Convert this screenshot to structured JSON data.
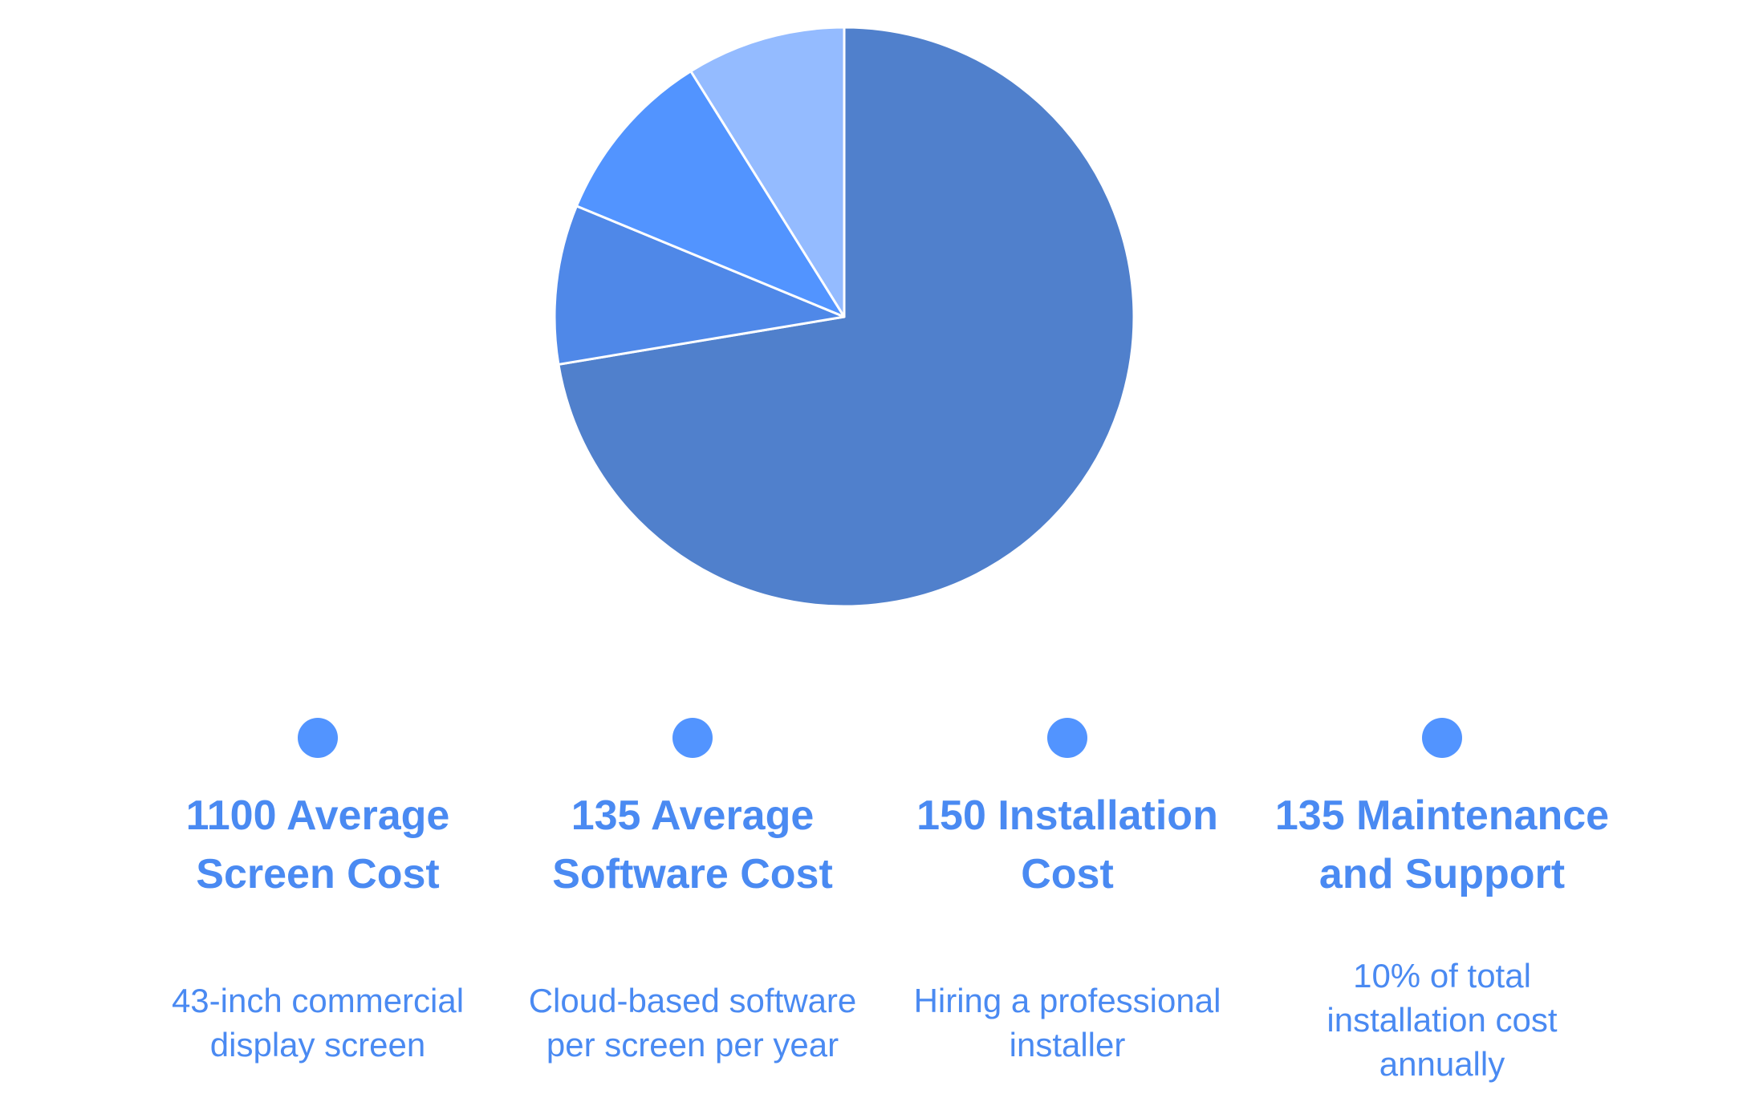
{
  "chart_data": {
    "type": "pie",
    "categories": [
      "Average Screen Cost",
      "Average Software Cost",
      "Installation Cost",
      "Maintenance and Support"
    ],
    "values": [
      1100,
      135,
      150,
      135
    ],
    "descriptions": [
      "43-inch commercial display screen",
      "Cloud-based software per screen per year",
      "Hiring a professional installer",
      "10% of total installation cost annually"
    ],
    "colors": [
      "#5080cc",
      "#4f88e8",
      "#5294ff",
      "#94bbff"
    ]
  }
}
